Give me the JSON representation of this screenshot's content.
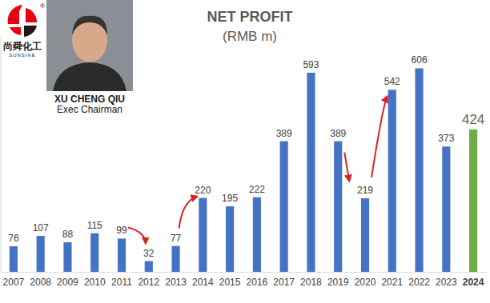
{
  "chart_data": {
    "type": "bar",
    "title": "NET PROFIT",
    "subtitle": "(RMB m)",
    "annotations": [
      "尚舜化工",
      "SUNSINE",
      "®",
      "XU CHENG QIU",
      "Exec Chairman"
    ],
    "categories": [
      "2007",
      "2008",
      "2009",
      "2010",
      "2011",
      "2012",
      "2013",
      "2014",
      "2015",
      "2016",
      "2017",
      "2018",
      "2019",
      "2020",
      "2021",
      "2022",
      "2023",
      "2024"
    ],
    "values": [
      76,
      107,
      88,
      115,
      99,
      32,
      77,
      220,
      195,
      222,
      389,
      593,
      389,
      219,
      542,
      606,
      373,
      424
    ],
    "colors": [
      "#4472c4",
      "#4472c4",
      "#4472c4",
      "#4472c4",
      "#4472c4",
      "#4472c4",
      "#4472c4",
      "#4472c4",
      "#4472c4",
      "#4472c4",
      "#4472c4",
      "#4472c4",
      "#4472c4",
      "#4472c4",
      "#4472c4",
      "#4472c4",
      "#4472c4",
      "#70ad47"
    ],
    "ylim": [
      0,
      700
    ],
    "data_labels": true,
    "tick_labels": "x",
    "grid": false
  }
}
